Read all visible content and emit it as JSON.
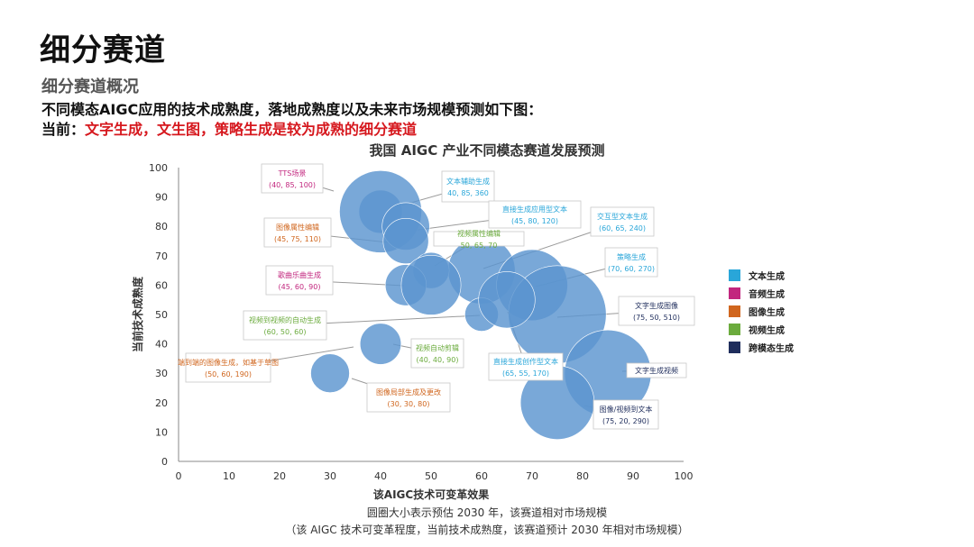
{
  "slide": {
    "title": "细分赛道",
    "subtitle": "细分赛道概况",
    "description": "不同模态AIGC应用的技术成熟度，落地成熟度以及未来市场规模预测如下图：",
    "current_lead": "当前：",
    "current_highlight": "文字生成，文生图，策略生成是较为成熟的细分赛道",
    "caption_line1": "圆圈大小表示预估 2030 年，该赛道相对市场规模",
    "caption_line2": "（该 AIGC 技术可变革程度，当前技术成熟度，该赛道预计 2030 年相对市场规模）"
  },
  "chart_data": {
    "type": "scatter",
    "title": "我国 AIGC 产业不同模态赛道发展预测",
    "xlabel": "该AIGC技术可变革效果",
    "ylabel": "当前技术成熟度",
    "xlim": [
      0,
      100
    ],
    "ylim": [
      0,
      100
    ],
    "x_ticks": [
      "0",
      "10",
      "20",
      "30",
      "40",
      "50",
      "60",
      "70",
      "80",
      "90",
      "100"
    ],
    "y_ticks": [
      "0",
      "10",
      "20",
      "30",
      "40",
      "50",
      "60",
      "70",
      "80",
      "90",
      "100"
    ],
    "bubble_color": "#5b95cf",
    "legend": [
      {
        "name": "文本生成",
        "color": "#29a6d9"
      },
      {
        "name": "音频生成",
        "color": "#c2267e"
      },
      {
        "name": "图像生成",
        "color": "#d0661e"
      },
      {
        "name": "视频生成",
        "color": "#6bab3d"
      },
      {
        "name": "跨模态生成",
        "color": "#1f2d5c"
      }
    ],
    "points": [
      {
        "name": "TTS场景",
        "value_text": "(40, 85, 100)",
        "x": 40,
        "y": 85,
        "size": 100,
        "category": "音频生成",
        "color": "#c2267e"
      },
      {
        "name": "文本辅助生成",
        "value_text": "40, 85, 360",
        "x": 40,
        "y": 85,
        "size": 360,
        "category": "文本生成",
        "color": "#29a6d9"
      },
      {
        "name": "直接生成应用型文本",
        "value_text": "(45, 80, 120)",
        "x": 45,
        "y": 80,
        "size": 120,
        "category": "文本生成",
        "color": "#29a6d9"
      },
      {
        "name": "交互型文本生成",
        "value_text": "(60, 65, 240)",
        "x": 60,
        "y": 65,
        "size": 240,
        "category": "文本生成",
        "color": "#29a6d9"
      },
      {
        "name": "图像属性编辑",
        "value_text": "(45, 75, 110)",
        "x": 45,
        "y": 75,
        "size": 110,
        "category": "图像生成",
        "color": "#d0661e"
      },
      {
        "name": "视频属性编辑",
        "value_text": "50, 65, 70",
        "x": 50,
        "y": 65,
        "size": 70,
        "category": "视频生成",
        "color": "#6bab3d"
      },
      {
        "name": "策略生成",
        "value_text": "(70, 60, 270)",
        "x": 70,
        "y": 60,
        "size": 270,
        "category": "文本生成",
        "color": "#29a6d9"
      },
      {
        "name": "歌曲乐曲生成",
        "value_text": "(45, 60, 90)",
        "x": 45,
        "y": 60,
        "size": 90,
        "category": "音频生成",
        "color": "#c2267e"
      },
      {
        "name": "文字生成图像",
        "value_text": "(75, 50, 510)",
        "x": 75,
        "y": 50,
        "size": 510,
        "category": "跨模态生成",
        "color": "#1f2d5c"
      },
      {
        "name": "视频到视频的自动生成",
        "value_text": "(60, 50, 60)",
        "x": 60,
        "y": 50,
        "size": 60,
        "category": "视频生成",
        "color": "#6bab3d"
      },
      {
        "name": "端到端的图像生成，如基于草图",
        "value_text": "(50, 60, 190)",
        "x": 50,
        "y": 60,
        "size": 190,
        "category": "图像生成",
        "color": "#d0661e"
      },
      {
        "name": "视频自动剪辑",
        "value_text": "(40, 40, 90)",
        "x": 40,
        "y": 40,
        "size": 90,
        "category": "视频生成",
        "color": "#6bab3d"
      },
      {
        "name": "直接生成创作型文本",
        "value_text": "(65, 55, 170)",
        "x": 65,
        "y": 55,
        "size": 170,
        "category": "文本生成",
        "color": "#29a6d9"
      },
      {
        "name": "文字生成视频",
        "value_text": "",
        "x": 85,
        "y": 30,
        "size": 400,
        "category": "跨模态生成",
        "color": "#1f2d5c"
      },
      {
        "name": "图像局部生成及更改",
        "value_text": "(30, 30, 80)",
        "x": 30,
        "y": 30,
        "size": 80,
        "category": "图像生成",
        "color": "#d0661e"
      },
      {
        "name": "图像/视频到文本",
        "value_text": "(75, 20, 290)",
        "x": 75,
        "y": 20,
        "size": 290,
        "category": "跨模态生成",
        "color": "#1f2d5c"
      }
    ]
  }
}
